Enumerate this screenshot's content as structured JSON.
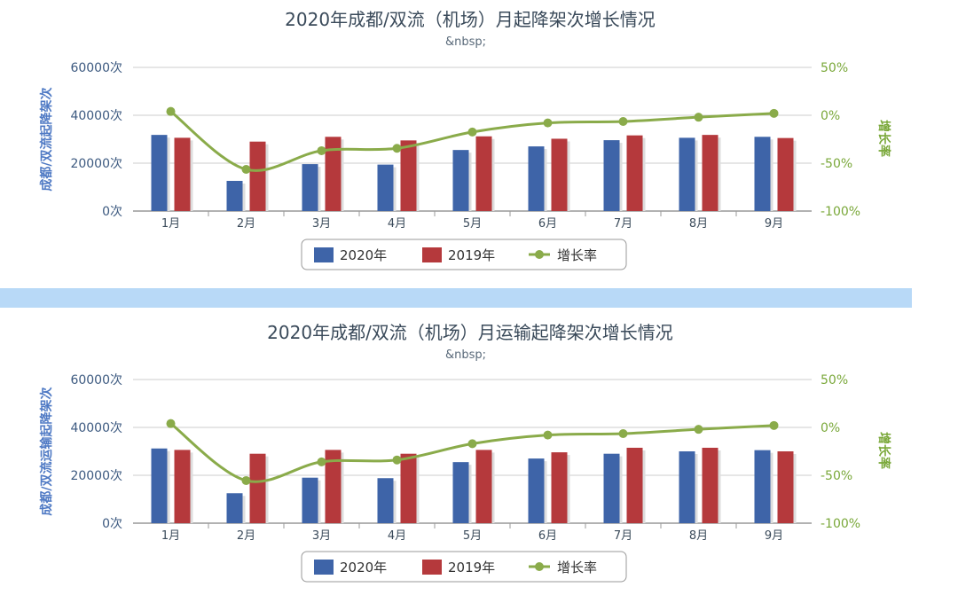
{
  "colors": {
    "series2020": "#3e64a8",
    "series2019": "#b5393c",
    "growth": "#8aab4a"
  },
  "chart_data": [
    {
      "type": "bar",
      "title": "2020年成都/双流（机场）月起降架次增长情况",
      "subtitle": "&nbsp;",
      "categories": [
        "1月",
        "2月",
        "3月",
        "4月",
        "5月",
        "6月",
        "7月",
        "8月",
        "9月"
      ],
      "ylabel": "成都/双流起降架次",
      "y2label": "增长率",
      "ylim": [
        0,
        60000
      ],
      "y2lim": [
        -100,
        50
      ],
      "yticks": [
        "0次",
        "20000次",
        "40000次",
        "60000次"
      ],
      "y2ticks": [
        "-100%",
        "-50%",
        "0%",
        "50%"
      ],
      "series": [
        {
          "name": "2020年",
          "type": "bar",
          "values": [
            31800,
            12600,
            19600,
            19400,
            25500,
            27000,
            29600,
            30600,
            31000
          ]
        },
        {
          "name": "2019年",
          "type": "bar",
          "values": [
            30600,
            29000,
            31000,
            29500,
            31200,
            30200,
            31600,
            31800,
            30500
          ]
        },
        {
          "name": "增长率",
          "type": "line",
          "axis": "right",
          "values": [
            4,
            -56.5,
            -37,
            -34.5,
            -17.5,
            -8,
            -6.5,
            -2,
            2
          ]
        }
      ],
      "legend": "bottom-center",
      "grid": true
    },
    {
      "type": "bar",
      "title": "2020年成都/双流（机场）月运输起降架次增长情况",
      "subtitle": "&nbsp;",
      "categories": [
        "1月",
        "2月",
        "3月",
        "4月",
        "5月",
        "6月",
        "7月",
        "8月",
        "9月"
      ],
      "ylabel": "成都/双流运输起降架次",
      "y2label": "增长率",
      "ylim": [
        0,
        60000
      ],
      "y2lim": [
        -100,
        50
      ],
      "yticks": [
        "0次",
        "20000次",
        "40000次",
        "60000次"
      ],
      "y2ticks": [
        "-100%",
        "-50%",
        "0%",
        "50%"
      ],
      "series": [
        {
          "name": "2020年",
          "type": "bar",
          "values": [
            31200,
            12500,
            19000,
            18800,
            25500,
            27000,
            29000,
            30000,
            30500
          ]
        },
        {
          "name": "2019年",
          "type": "bar",
          "values": [
            30600,
            29000,
            30600,
            29000,
            30600,
            29600,
            31500,
            31500,
            30000
          ]
        },
        {
          "name": "增长率",
          "type": "line",
          "axis": "right",
          "values": [
            4,
            -55.5,
            -36,
            -34,
            -17,
            -8,
            -6.5,
            -2,
            2
          ]
        }
      ],
      "legend": "bottom-center",
      "grid": true
    }
  ]
}
